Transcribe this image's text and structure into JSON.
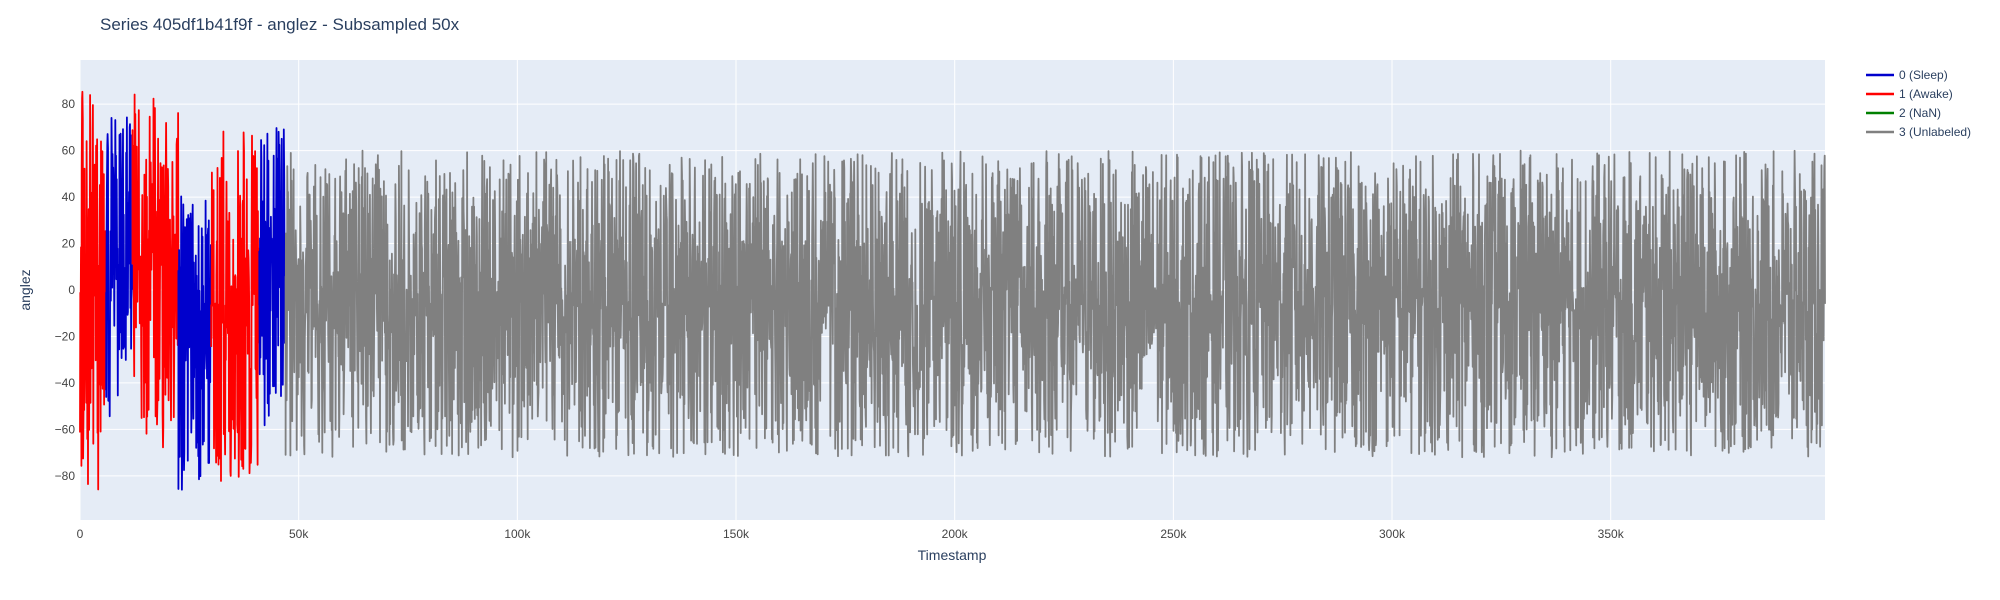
{
  "chart_data": {
    "type": "line",
    "title": "Series 405df1b41f9f - anglez - Subsampled 50x",
    "xlabel": "Timestamp",
    "ylabel": "anglez",
    "xlim": [
      0,
      399000
    ],
    "ylim": [
      -99,
      99
    ],
    "x_ticks": [
      0,
      50000,
      100000,
      150000,
      200000,
      250000,
      300000,
      350000
    ],
    "x_tick_labels": [
      "0",
      "50k",
      "100k",
      "150k",
      "200k",
      "250k",
      "300k",
      "350k"
    ],
    "y_ticks": [
      -80,
      -60,
      -40,
      -20,
      0,
      20,
      40,
      60,
      80
    ],
    "y_tick_labels": [
      "−80",
      "−60",
      "−40",
      "−20",
      "0",
      "20",
      "40",
      "60",
      "80"
    ],
    "grid": true,
    "legend_position": "top-right",
    "background_color": "#e5ecf6",
    "series": [
      {
        "name": "0 (Sleep)",
        "color": "#0000cc"
      },
      {
        "name": "1 (Awake)",
        "color": "#ff0000"
      },
      {
        "name": "2 (NaN)",
        "color": "#008000"
      },
      {
        "name": "3 (Unlabeled)",
        "color": "#808080"
      }
    ],
    "segments": [
      {
        "series": 1,
        "x_start": 0,
        "x_end": 6000,
        "y_min": -88,
        "y_max": 86
      },
      {
        "series": 0,
        "x_start": 6000,
        "x_end": 12000,
        "y_min": -55,
        "y_max": 77
      },
      {
        "series": 1,
        "x_start": 12000,
        "x_end": 22500,
        "y_min": -68,
        "y_max": 85
      },
      {
        "series": 0,
        "x_start": 22500,
        "x_end": 30000,
        "y_min": -90,
        "y_max": 41
      },
      {
        "series": 1,
        "x_start": 30000,
        "x_end": 41000,
        "y_min": -83,
        "y_max": 70
      },
      {
        "series": 0,
        "x_start": 41000,
        "x_end": 47000,
        "y_min": -60,
        "y_max": 72
      },
      {
        "series": 3,
        "x_start": 47000,
        "x_end": 399000,
        "y_min": -72,
        "y_max": 60
      }
    ]
  }
}
